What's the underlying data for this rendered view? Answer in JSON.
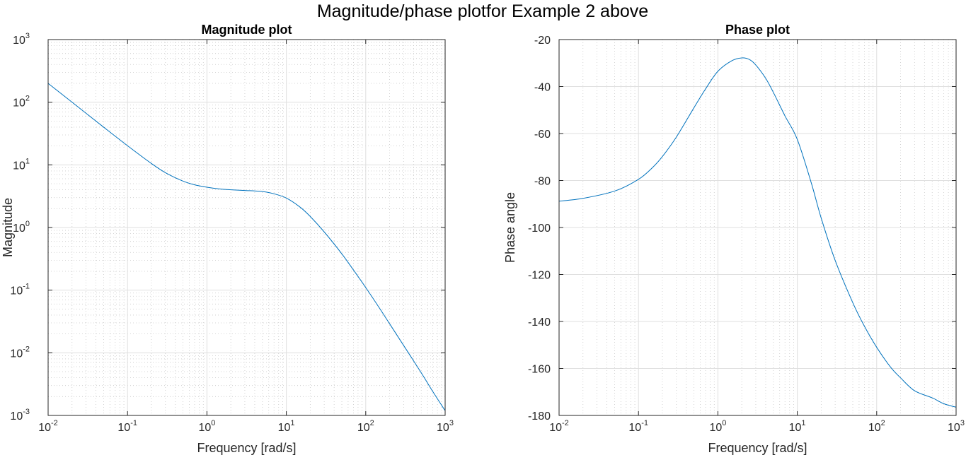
{
  "figure": {
    "title": "Magnitude/phase plotfor Example 2 above"
  },
  "colors": {
    "series": "#0072BD",
    "axes": "#262626",
    "grid": "#dfdfdf",
    "minor_grid": "#c8c8c8"
  },
  "chart_data": [
    {
      "type": "line",
      "title": "Magnitude plot",
      "xlabel": "Frequency [rad/s]",
      "ylabel": "Magnitude",
      "xscale": "log",
      "yscale": "log",
      "xlim": [
        0.01,
        1000
      ],
      "ylim": [
        0.001,
        1000
      ],
      "grid": true,
      "minor_grid": true,
      "x_ticks": [
        {
          "base": "10",
          "exp": "-2"
        },
        {
          "base": "10",
          "exp": "-1"
        },
        {
          "base": "10",
          "exp": "0"
        },
        {
          "base": "10",
          "exp": "1"
        },
        {
          "base": "10",
          "exp": "2"
        },
        {
          "base": "10",
          "exp": "3"
        }
      ],
      "y_ticks": [
        {
          "base": "10",
          "exp": "-3"
        },
        {
          "base": "10",
          "exp": "-2"
        },
        {
          "base": "10",
          "exp": "-1"
        },
        {
          "base": "10",
          "exp": "0"
        },
        {
          "base": "10",
          "exp": "1"
        },
        {
          "base": "10",
          "exp": "2"
        },
        {
          "base": "10",
          "exp": "3"
        }
      ],
      "series": [
        {
          "color": "#0072BD",
          "x": [
            0.01,
            0.02,
            0.05,
            0.1,
            0.2,
            0.3,
            0.5,
            0.7,
            1,
            1.5,
            2,
            3,
            5,
            7,
            10,
            15,
            20,
            30,
            50,
            70,
            100,
            150,
            200,
            300,
            500,
            700,
            1000
          ],
          "y": [
            200,
            100,
            40,
            20.2,
            10.5,
            7.5,
            5.5,
            4.8,
            4.4,
            4.1,
            4.0,
            3.9,
            3.75,
            3.45,
            2.95,
            2.1,
            1.5,
            0.85,
            0.38,
            0.21,
            0.11,
            0.051,
            0.029,
            0.0131,
            0.0048,
            0.0024,
            0.00119
          ]
        }
      ]
    },
    {
      "type": "line",
      "title": "Phase plot",
      "xlabel": "Frequency [rad/s]",
      "ylabel": "Phase angle",
      "xscale": "log",
      "yscale": "linear",
      "xlim": [
        0.01,
        1000
      ],
      "ylim": [
        -180,
        -20
      ],
      "grid": true,
      "minor_grid": true,
      "x_ticks": [
        {
          "base": "10",
          "exp": "-2"
        },
        {
          "base": "10",
          "exp": "-1"
        },
        {
          "base": "10",
          "exp": "0"
        },
        {
          "base": "10",
          "exp": "1"
        },
        {
          "base": "10",
          "exp": "2"
        },
        {
          "base": "10",
          "exp": "3"
        }
      ],
      "y_ticks": [
        "-180",
        "-160",
        "-140",
        "-120",
        "-100",
        "-80",
        "-60",
        "-40",
        "-20"
      ],
      "series": [
        {
          "color": "#0072BD",
          "x": [
            0.01,
            0.02,
            0.05,
            0.1,
            0.15,
            0.2,
            0.3,
            0.5,
            0.7,
            1,
            1.5,
            2,
            2.5,
            3,
            4,
            5,
            7,
            10,
            15,
            20,
            30,
            50,
            70,
            100,
            150,
            200,
            300,
            500,
            700,
            1000
          ],
          "y": [
            -88.8,
            -87.6,
            -84.5,
            -79.5,
            -74.5,
            -69.8,
            -61.5,
            -49.0,
            -41.0,
            -33.5,
            -29.0,
            -27.8,
            -28.5,
            -30.8,
            -36.5,
            -42.5,
            -52.5,
            -62.5,
            -81.0,
            -96.0,
            -114.0,
            -132.0,
            -142.0,
            -151.0,
            -159.5,
            -164.0,
            -169.5,
            -172.5,
            -175.0,
            -176.5
          ]
        }
      ]
    }
  ]
}
